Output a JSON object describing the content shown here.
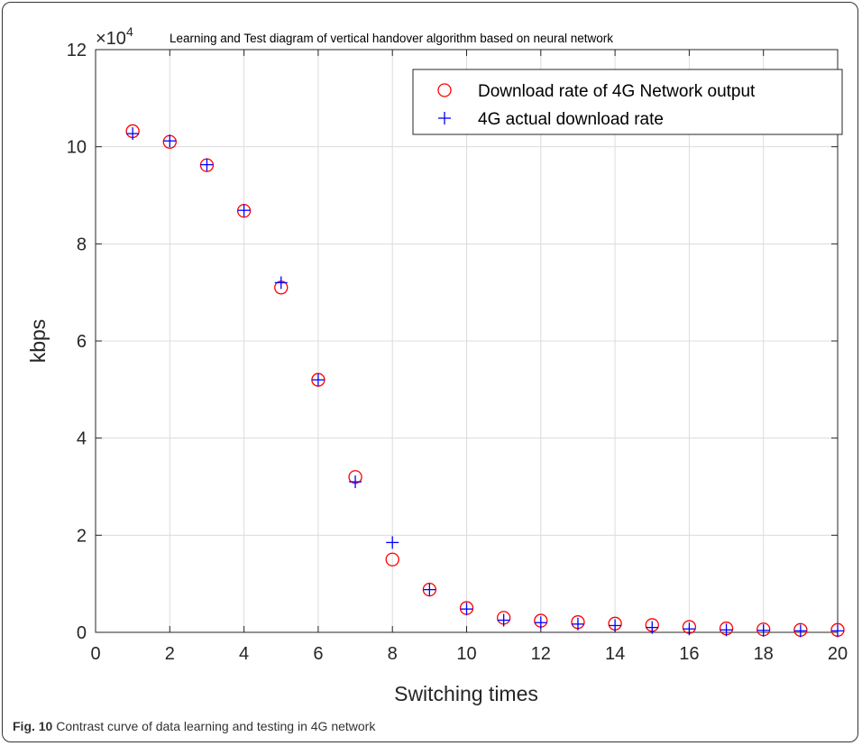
{
  "chart_data": {
    "type": "scatter",
    "title": "Learning and Test diagram of vertical handover algorithm based on neural network",
    "xlabel": "Switching times",
    "ylabel": "kbps",
    "y_multiplier": "×10",
    "y_multiplier_exp": "4",
    "xlim": [
      0,
      20
    ],
    "ylim": [
      0,
      120000
    ],
    "x_ticks": [
      0,
      2,
      4,
      6,
      8,
      10,
      12,
      14,
      16,
      18,
      20
    ],
    "y_ticks": [
      0,
      20000,
      40000,
      60000,
      80000,
      100000,
      120000
    ],
    "y_tick_labels": [
      "0",
      "2",
      "4",
      "6",
      "8",
      "10",
      "12"
    ],
    "grid": true,
    "legend_position": "top-right",
    "x": [
      1,
      2,
      3,
      4,
      5,
      6,
      7,
      8,
      9,
      10,
      11,
      12,
      13,
      14,
      15,
      16,
      17,
      18,
      19,
      20
    ],
    "series": [
      {
        "name": "Download rate of 4G Network output",
        "marker": "circle",
        "color": "#ff0000",
        "values": [
          103200,
          101000,
          96200,
          86800,
          71000,
          52000,
          32000,
          15000,
          8800,
          5000,
          3000,
          2400,
          2100,
          1800,
          1500,
          1100,
          800,
          600,
          500,
          500
        ]
      },
      {
        "name": "4G actual download rate",
        "marker": "plus",
        "color": "#0000ff",
        "values": [
          102700,
          101200,
          96300,
          86900,
          72000,
          52000,
          31000,
          18500,
          8800,
          4800,
          2500,
          2000,
          1700,
          1400,
          1000,
          700,
          500,
          400,
          300,
          300
        ]
      }
    ]
  },
  "caption": {
    "label": "Fig. 10",
    "text": " Contrast curve of data learning and testing in 4G network"
  }
}
